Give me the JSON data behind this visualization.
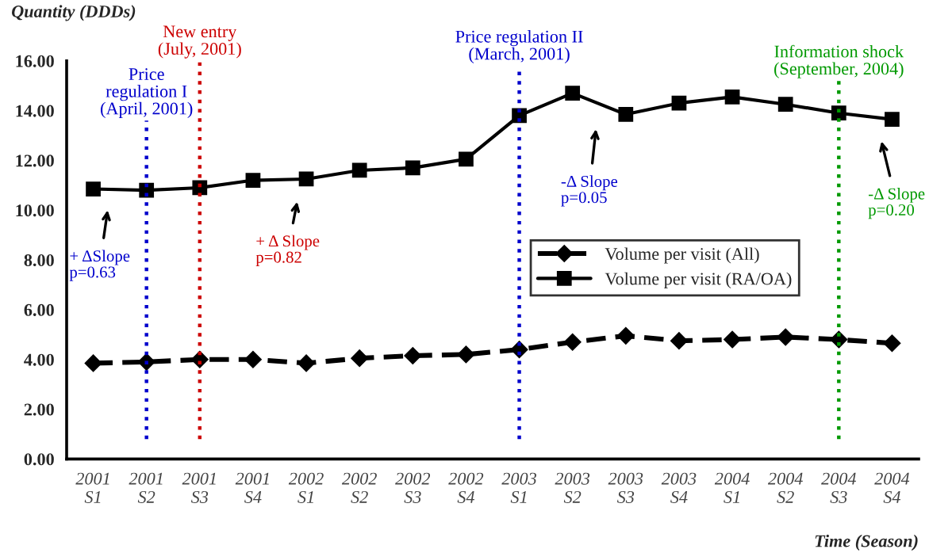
{
  "chart_data": {
    "type": "line",
    "ylabel": "Quantity (DDDs)",
    "xlabel": "Time (Season)",
    "categories": [
      "2001\nS1",
      "2001\nS2",
      "2001\nS3",
      "2001\nS4",
      "2002\nS1",
      "2002\nS2",
      "2002\nS3",
      "2002\nS4",
      "2003\nS1",
      "2003\nS2",
      "2003\nS3",
      "2003\nS4",
      "2004\nS1",
      "2004\nS2",
      "2004\nS3",
      "2004\nS4"
    ],
    "series": [
      {
        "name": "Volume per visit (All)",
        "color": "#000000",
        "marker": "diamond",
        "line_style": "dashed",
        "values": [
          3.85,
          3.9,
          4.0,
          4.0,
          3.85,
          4.05,
          4.15,
          4.2,
          4.4,
          4.7,
          4.95,
          4.75,
          4.8,
          4.9,
          4.8,
          4.65
        ]
      },
      {
        "name": "Volume per visit (RA/OA)",
        "color": "#000000",
        "marker": "square",
        "line_style": "solid",
        "values": [
          10.85,
          10.8,
          10.9,
          11.2,
          11.25,
          11.6,
          11.7,
          12.05,
          13.8,
          14.7,
          13.85,
          14.3,
          14.55,
          14.25,
          13.9,
          13.65
        ]
      }
    ],
    "ylim": [
      0,
      16
    ],
    "yticks": [
      {
        "value": 0,
        "label": "0.00"
      },
      {
        "value": 2,
        "label": "2.00"
      },
      {
        "value": 4,
        "label": "4.00"
      },
      {
        "value": 6,
        "label": "6.00"
      },
      {
        "value": 8,
        "label": "8.00"
      },
      {
        "value": 10,
        "label": "10.00"
      },
      {
        "value": 12,
        "label": "12.00"
      },
      {
        "value": 14,
        "label": "14.00"
      },
      {
        "value": 16,
        "label": "16.00"
      }
    ],
    "ref_lines": [
      {
        "axis": "x",
        "value": "2001\nS2",
        "label": "Price\nregulation I\n(April, 2001)",
        "color": "#0000cc",
        "line_style": "dotted"
      },
      {
        "axis": "x",
        "value": "2001\nS3",
        "label": "New entry\n(July, 2001)",
        "color": "#cc0000",
        "line_style": "dotted"
      },
      {
        "axis": "x",
        "value": "2003\nS1",
        "label": "Price regulation II\n(March, 2001)",
        "color": "#0000cc",
        "line_style": "dotted"
      },
      {
        "axis": "x",
        "value": "2004\nS3",
        "label": "Information shock\n(September, 2004)",
        "color": "#009900",
        "line_style": "dotted"
      }
    ],
    "annotations": [
      "+ ΔSlope\np=0.63",
      "+ Δ Slope\np=0.82",
      "-Δ Slope\np=0.05",
      "-Δ Slope\np=0.20"
    ],
    "legend": "center right",
    "grid": false
  }
}
